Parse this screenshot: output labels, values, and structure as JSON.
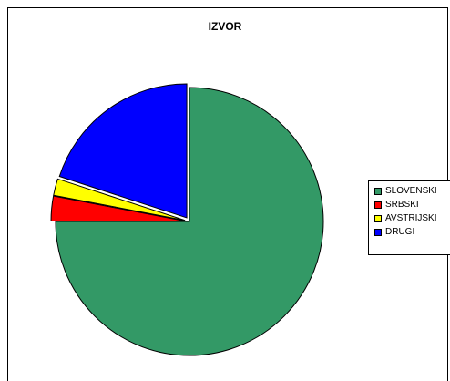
{
  "chart_data": {
    "type": "pie",
    "title": "IZVOR",
    "categories": [
      "SLOVENSKI",
      "SRBSKI",
      "AVSTRIJSKI",
      "DRUGI"
    ],
    "values": [
      75,
      3,
      2,
      20
    ],
    "exploded": [
      false,
      true,
      true,
      true
    ],
    "colors": [
      "#339966",
      "#ff0000",
      "#ffff00",
      "#0000ff"
    ],
    "legend_position": "right"
  },
  "legend": {
    "items": [
      {
        "label": "SLOVENSKI",
        "color": "#339966"
      },
      {
        "label": "SRBSKI",
        "color": "#ff0000"
      },
      {
        "label": "AVSTRIJSKI",
        "color": "#ffff00"
      },
      {
        "label": "DRUGI",
        "color": "#0000ff"
      }
    ]
  }
}
